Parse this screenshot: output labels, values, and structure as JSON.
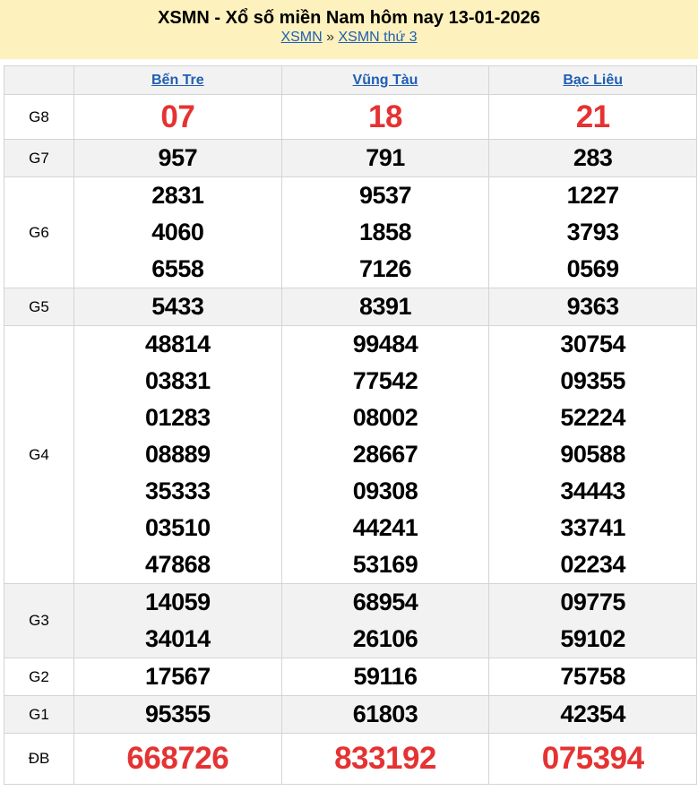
{
  "header": {
    "title": "XSMN - Xổ số miền Nam hôm nay 13-01-2026",
    "breadcrumb": [
      "XSMN",
      "XSMN thứ 3"
    ],
    "separator": "»"
  },
  "provinces": [
    "Bến Tre",
    "Vũng Tàu",
    "Bạc Liêu"
  ],
  "prizes": [
    {
      "label": "G8",
      "style": "red",
      "values": [
        [
          "07"
        ],
        [
          "18"
        ],
        [
          "21"
        ]
      ]
    },
    {
      "label": "G7",
      "values": [
        [
          "957"
        ],
        [
          "791"
        ],
        [
          "283"
        ]
      ]
    },
    {
      "label": "G6",
      "values": [
        [
          "2831",
          "4060",
          "6558"
        ],
        [
          "9537",
          "1858",
          "7126"
        ],
        [
          "1227",
          "3793",
          "0569"
        ]
      ]
    },
    {
      "label": "G5",
      "values": [
        [
          "5433"
        ],
        [
          "8391"
        ],
        [
          "9363"
        ]
      ]
    },
    {
      "label": "G4",
      "values": [
        [
          "48814",
          "03831",
          "01283",
          "08889",
          "35333",
          "03510",
          "47868"
        ],
        [
          "99484",
          "77542",
          "08002",
          "28667",
          "09308",
          "44241",
          "53169"
        ],
        [
          "30754",
          "09355",
          "52224",
          "90588",
          "34443",
          "33741",
          "02234"
        ]
      ]
    },
    {
      "label": "G3",
      "values": [
        [
          "14059",
          "34014"
        ],
        [
          "68954",
          "26106"
        ],
        [
          "09775",
          "59102"
        ]
      ]
    },
    {
      "label": "G2",
      "values": [
        [
          "17567"
        ],
        [
          "59116"
        ],
        [
          "75758"
        ]
      ]
    },
    {
      "label": "G1",
      "values": [
        [
          "95355"
        ],
        [
          "61803"
        ],
        [
          "42354"
        ]
      ]
    },
    {
      "label": "ĐB",
      "style": "db",
      "values": [
        [
          "668726"
        ],
        [
          "833192"
        ],
        [
          "075394"
        ]
      ]
    }
  ],
  "colors": {
    "accent_red": "#e53232",
    "link": "#1f5fb4",
    "header_bg": "#fdf1bd"
  }
}
